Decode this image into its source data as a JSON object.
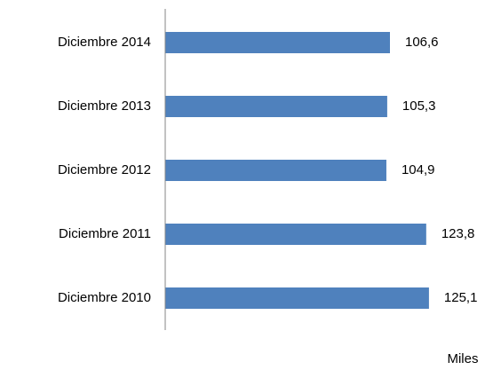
{
  "chart_data": {
    "type": "bar",
    "orientation": "horizontal",
    "categories": [
      "Diciembre 2014",
      "Diciembre 2013",
      "Diciembre 2012",
      "Diciembre 2011",
      "Diciembre 2010"
    ],
    "values": [
      106.6,
      105.3,
      104.9,
      123.8,
      125.1
    ],
    "value_labels": [
      "106,6",
      "105,3",
      "104,9",
      "123,8",
      "125,1"
    ],
    "color": "#4f81bd",
    "xlim": [
      0,
      150
    ],
    "x_label": "Miles"
  }
}
